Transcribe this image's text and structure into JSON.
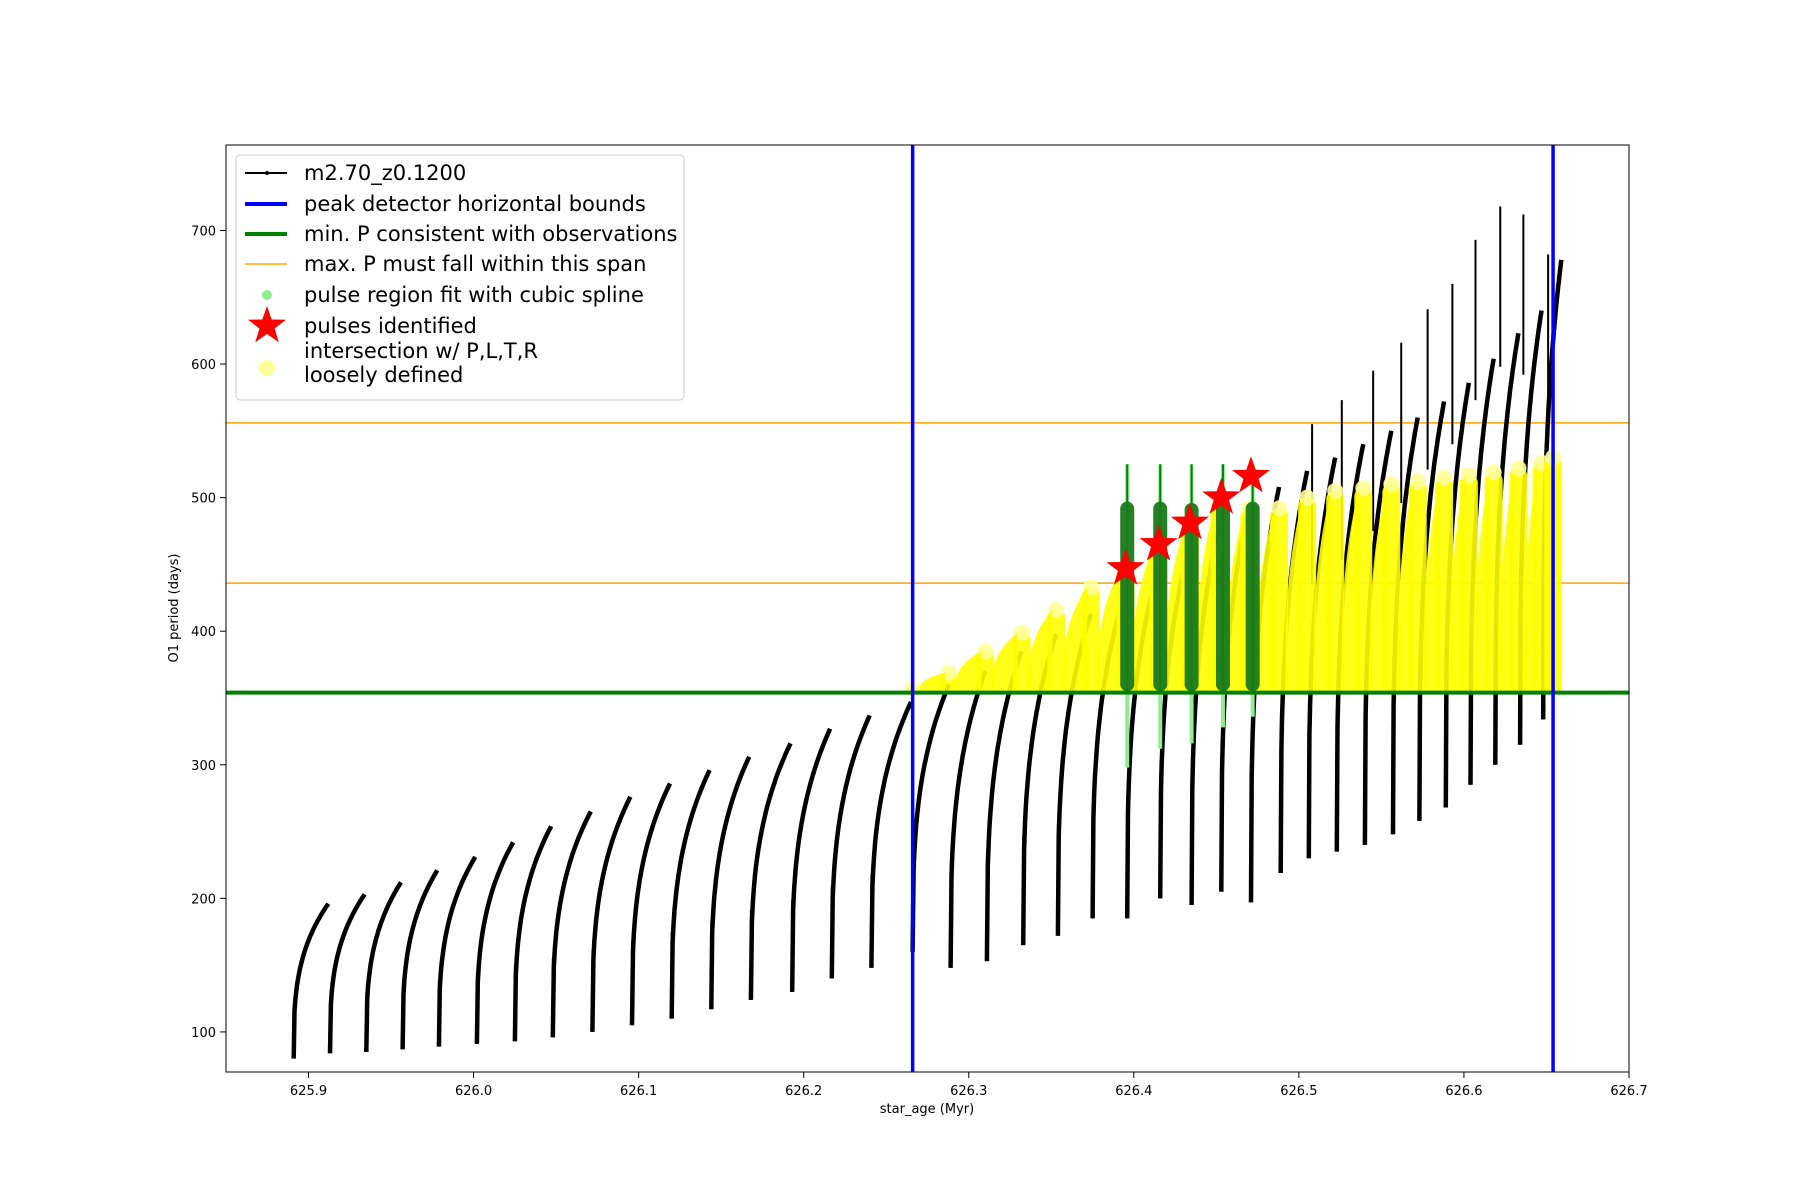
{
  "chart_data": {
    "type": "line",
    "xlabel": "star_age (Myr)",
    "ylabel": "O1 period (days)",
    "xlim": [
      625.85,
      626.7
    ],
    "ylim": [
      70,
      764
    ],
    "xticks": [
      625.9,
      626.0,
      626.1,
      626.2,
      626.3,
      626.4,
      626.5,
      626.6,
      626.7
    ],
    "xtick_labels": [
      "625.9",
      "626.0",
      "626.1",
      "626.2",
      "626.3",
      "626.4",
      "626.5",
      "626.6",
      "626.7"
    ],
    "yticks": [
      100,
      200,
      300,
      400,
      500,
      600,
      700
    ],
    "ytick_labels": [
      "100",
      "200",
      "300",
      "400",
      "500",
      "600",
      "700"
    ],
    "grid": false,
    "legend_position": "top-left",
    "legend": [
      {
        "label": "m2.70_z0.1200",
        "kind": "line-marker",
        "color": "#000000"
      },
      {
        "label": "peak detector horizontal bounds",
        "kind": "line",
        "color": "#0000ff"
      },
      {
        "label": "min. P consistent with observations",
        "kind": "line",
        "color": "#008000"
      },
      {
        "label": "max. P must fall within this span",
        "kind": "line",
        "color": "#ffa500"
      },
      {
        "label": "pulse region fit with cubic spline",
        "kind": "dot",
        "color": "#90ee90"
      },
      {
        "label": "pulses identified",
        "kind": "star",
        "color": "#ff0000"
      },
      {
        "label": "intersection w/ P,L,T,R\nloosely defined",
        "kind": "dot",
        "color": "#ffff99"
      }
    ],
    "series": [
      {
        "name": "m2.70_z0.1200",
        "color": "#000000",
        "pulses": [
          {
            "start": 625.891,
            "end": 625.912,
            "base": 80,
            "top": 196
          },
          {
            "start": 625.913,
            "end": 625.934,
            "base": 84,
            "top": 203
          },
          {
            "start": 625.935,
            "end": 625.956,
            "base": 85,
            "top": 212
          },
          {
            "start": 625.957,
            "end": 625.978,
            "base": 87,
            "top": 221
          },
          {
            "start": 625.979,
            "end": 626.001,
            "base": 89,
            "top": 231
          },
          {
            "start": 626.002,
            "end": 626.024,
            "base": 91,
            "top": 242
          },
          {
            "start": 626.025,
            "end": 626.047,
            "base": 93,
            "top": 254
          },
          {
            "start": 626.048,
            "end": 626.071,
            "base": 96,
            "top": 265
          },
          {
            "start": 626.072,
            "end": 626.095,
            "base": 100,
            "top": 276
          },
          {
            "start": 626.096,
            "end": 626.119,
            "base": 105,
            "top": 286
          },
          {
            "start": 626.12,
            "end": 626.143,
            "base": 110,
            "top": 296
          },
          {
            "start": 626.144,
            "end": 626.167,
            "base": 117,
            "top": 306
          },
          {
            "start": 626.168,
            "end": 626.192,
            "base": 124,
            "top": 316
          },
          {
            "start": 626.193,
            "end": 626.216,
            "base": 130,
            "top": 327
          },
          {
            "start": 626.217,
            "end": 626.24,
            "base": 140,
            "top": 337
          },
          {
            "start": 626.241,
            "end": 626.265,
            "base": 148,
            "top": 347
          },
          {
            "start": 626.266,
            "end": 626.288,
            "base": 160,
            "top": 360
          },
          {
            "start": 626.289,
            "end": 626.31,
            "base": 148,
            "top": 370
          },
          {
            "start": 626.311,
            "end": 626.332,
            "base": 153,
            "top": 385
          },
          {
            "start": 626.333,
            "end": 626.353,
            "base": 165,
            "top": 398
          },
          {
            "start": 626.354,
            "end": 626.374,
            "base": 172,
            "top": 413
          },
          {
            "start": 626.375,
            "end": 626.395,
            "base": 185,
            "top": 430
          },
          {
            "start": 626.396,
            "end": 626.415,
            "base": 185,
            "top": 448
          },
          {
            "start": 626.416,
            "end": 626.434,
            "base": 200,
            "top": 465
          },
          {
            "start": 626.435,
            "end": 626.452,
            "base": 195,
            "top": 480
          },
          {
            "start": 626.453,
            "end": 626.47,
            "base": 205,
            "top": 495
          },
          {
            "start": 626.471,
            "end": 626.488,
            "base": 197,
            "top": 508
          },
          {
            "start": 626.489,
            "end": 626.505,
            "base": 219,
            "top": 520
          },
          {
            "start": 626.506,
            "end": 626.522,
            "base": 230,
            "top": 530
          },
          {
            "start": 626.523,
            "end": 626.539,
            "base": 235,
            "top": 540
          },
          {
            "start": 626.54,
            "end": 626.556,
            "base": 240,
            "top": 550
          },
          {
            "start": 626.557,
            "end": 626.572,
            "base": 248,
            "top": 560
          },
          {
            "start": 626.573,
            "end": 626.588,
            "base": 258,
            "top": 572
          },
          {
            "start": 626.589,
            "end": 626.603,
            "base": 268,
            "top": 586
          },
          {
            "start": 626.604,
            "end": 626.618,
            "base": 285,
            "top": 604
          },
          {
            "start": 626.619,
            "end": 626.633,
            "base": 300,
            "top": 623
          },
          {
            "start": 626.634,
            "end": 626.647,
            "base": 315,
            "top": 640
          },
          {
            "start": 626.648,
            "end": 626.659,
            "base": 334,
            "top": 678
          }
        ],
        "spikes": [
          {
            "x": 626.508,
            "y": 555
          },
          {
            "x": 626.526,
            "y": 573
          },
          {
            "x": 626.545,
            "y": 595
          },
          {
            "x": 626.562,
            "y": 616
          },
          {
            "x": 626.578,
            "y": 641
          },
          {
            "x": 626.593,
            "y": 660
          },
          {
            "x": 626.607,
            "y": 693
          },
          {
            "x": 626.622,
            "y": 718
          },
          {
            "x": 626.636,
            "y": 712
          },
          {
            "x": 626.651,
            "y": 682
          }
        ]
      }
    ],
    "vertical_bounds": [
      626.266,
      626.654
    ],
    "min_period": 354,
    "max_period_span": [
      436,
      556
    ],
    "pulses_identified": [
      {
        "x": 626.395,
        "y": 447
      },
      {
        "x": 626.415,
        "y": 465
      },
      {
        "x": 626.434,
        "y": 481
      },
      {
        "x": 626.453,
        "y": 500
      },
      {
        "x": 626.471,
        "y": 516
      }
    ],
    "spline_regions": [
      {
        "x": 626.396,
        "low": 298,
        "high": 525,
        "fill_low": 355,
        "fill_high": 497
      },
      {
        "x": 626.416,
        "low": 312,
        "high": 525,
        "fill_low": 355,
        "fill_high": 497
      },
      {
        "x": 626.435,
        "low": 316,
        "high": 525,
        "fill_low": 355,
        "fill_high": 496
      },
      {
        "x": 626.454,
        "low": 328,
        "high": 525,
        "fill_low": 355,
        "fill_high": 497
      },
      {
        "x": 626.472,
        "low": 336,
        "high": 525,
        "fill_low": 355,
        "fill_high": 497
      }
    ],
    "intersection_tops": [
      {
        "x": 626.266,
        "top": 357
      },
      {
        "x": 626.288,
        "top": 369
      },
      {
        "x": 626.31,
        "top": 385
      },
      {
        "x": 626.332,
        "top": 399
      },
      {
        "x": 626.353,
        "top": 416
      },
      {
        "x": 626.374,
        "top": 433
      },
      {
        "x": 626.395,
        "top": 448
      },
      {
        "x": 626.415,
        "top": 465
      },
      {
        "x": 626.434,
        "top": 480
      },
      {
        "x": 626.452,
        "top": 495
      },
      {
        "x": 626.47,
        "top": 492
      },
      {
        "x": 626.488,
        "top": 492
      },
      {
        "x": 626.505,
        "top": 500
      },
      {
        "x": 626.522,
        "top": 505
      },
      {
        "x": 626.539,
        "top": 507
      },
      {
        "x": 626.556,
        "top": 510
      },
      {
        "x": 626.572,
        "top": 512
      },
      {
        "x": 626.588,
        "top": 515
      },
      {
        "x": 626.603,
        "top": 517
      },
      {
        "x": 626.618,
        "top": 519
      },
      {
        "x": 626.633,
        "top": 522
      },
      {
        "x": 626.647,
        "top": 526
      },
      {
        "x": 626.654,
        "top": 530
      }
    ],
    "colors": {
      "model": "#000000",
      "bounds": "#0000ff",
      "min_period": "#008000",
      "max_period": "#ffa500",
      "spline": "#90ee90",
      "spline_dark": "#1a7a1a",
      "pulses": "#ff0000",
      "intersection": "#ffff00",
      "intersection_light": "#ffff99"
    }
  }
}
